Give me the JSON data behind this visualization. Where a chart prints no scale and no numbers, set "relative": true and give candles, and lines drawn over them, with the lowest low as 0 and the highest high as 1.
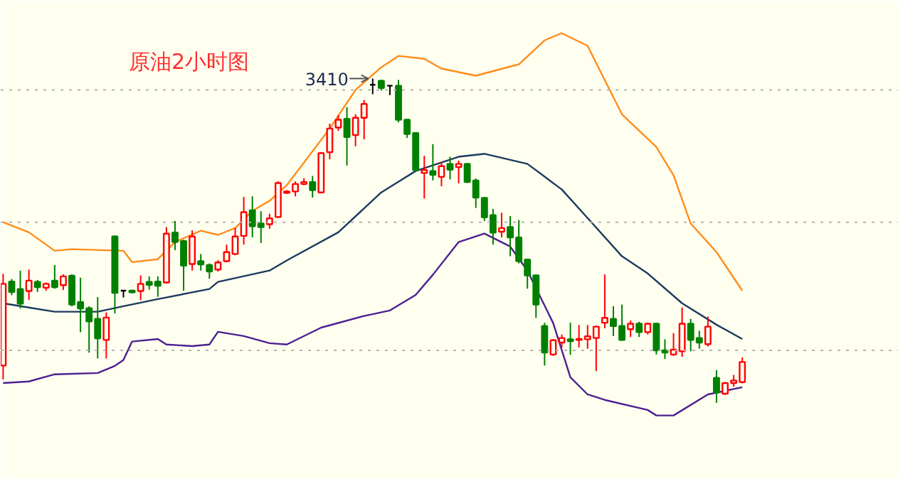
{
  "chart_data": {
    "type": "candlestick",
    "title": "原油2小时图",
    "relative": true,
    "categories": [
      null,
      null,
      null,
      null,
      null,
      null,
      null,
      null,
      null,
      null,
      null,
      null,
      null,
      null,
      null,
      null,
      null,
      null,
      null,
      null,
      null,
      null,
      null,
      null,
      null,
      null,
      null,
      null,
      null,
      null,
      null,
      null,
      null,
      null,
      null,
      null,
      null,
      null,
      null,
      null,
      null,
      null,
      null,
      null,
      null,
      null,
      null,
      null,
      null,
      null,
      null,
      null,
      null,
      null,
      null,
      null,
      null,
      null,
      null,
      null,
      null,
      null,
      null,
      null,
      null,
      null,
      null,
      null,
      null,
      null,
      null,
      null,
      null,
      null,
      null,
      null,
      null,
      null,
      null,
      null,
      null,
      null,
      null,
      null,
      null,
      null,
      null
    ],
    "ohlc": [
      [
        0.115,
        0.398,
        0.072,
        0.367
      ],
      [
        0.374,
        0.382,
        0.332,
        0.342
      ],
      [
        0.351,
        0.408,
        0.291,
        0.306
      ],
      [
        0.345,
        0.411,
        0.317,
        0.377
      ],
      [
        0.373,
        0.379,
        0.342,
        0.357
      ],
      [
        0.355,
        0.371,
        0.346,
        0.367
      ],
      [
        0.377,
        0.425,
        0.352,
        0.357
      ],
      [
        0.363,
        0.396,
        0.348,
        0.39
      ],
      [
        0.392,
        0.396,
        0.298,
        0.303
      ],
      [
        0.311,
        0.386,
        0.218,
        0.291
      ],
      [
        0.292,
        0.298,
        0.155,
        0.251
      ],
      [
        0.259,
        0.326,
        0.137,
        0.199
      ],
      [
        0.194,
        0.279,
        0.137,
        0.263
      ],
      [
        0.513,
        0.516,
        0.276,
        0.339
      ],
      [
        0.346,
        0.346,
        0.325,
        0.346
      ],
      [
        0.346,
        0.349,
        0.338,
        0.341
      ],
      [
        0.345,
        0.393,
        0.317,
        0.367
      ],
      [
        0.373,
        0.39,
        0.349,
        0.364
      ],
      [
        0.374,
        0.39,
        0.327,
        0.361
      ],
      [
        0.371,
        0.542,
        0.368,
        0.522
      ],
      [
        0.525,
        0.561,
        0.471,
        0.496
      ],
      [
        0.499,
        0.503,
        0.346,
        0.423
      ],
      [
        0.428,
        0.532,
        0.408,
        0.513
      ],
      [
        0.437,
        0.459,
        0.408,
        0.427
      ],
      [
        0.425,
        0.43,
        0.383,
        0.405
      ],
      [
        0.411,
        0.44,
        0.405,
        0.433
      ],
      [
        0.437,
        0.488,
        0.434,
        0.465
      ],
      [
        0.459,
        0.539,
        0.455,
        0.513
      ],
      [
        0.515,
        0.635,
        0.488,
        0.588
      ],
      [
        0.594,
        0.637,
        0.51,
        0.545
      ],
      [
        0.553,
        0.591,
        0.493,
        0.542
      ],
      [
        0.551,
        0.583,
        0.537,
        0.569
      ],
      [
        0.573,
        0.683,
        0.57,
        0.678
      ],
      [
        0.648,
        0.656,
        0.645,
        0.652
      ],
      [
        0.652,
        0.683,
        0.637,
        0.675
      ],
      [
        0.675,
        0.693,
        0.671,
        0.681
      ],
      [
        0.681,
        0.7,
        0.633,
        0.656
      ],
      [
        0.649,
        0.773,
        0.646,
        0.77
      ],
      [
        0.773,
        0.861,
        0.751,
        0.846
      ],
      [
        0.849,
        0.887,
        0.839,
        0.873
      ],
      [
        0.876,
        0.912,
        0.732,
        0.82
      ],
      [
        0.826,
        0.89,
        0.791,
        0.879
      ],
      [
        0.879,
        0.934,
        0.813,
        0.922
      ],
      [
        0.981,
        1.0,
        0.952,
        0.981
      ],
      [
        0.993,
        0.996,
        0.963,
        0.971
      ],
      [
        0.978,
        0.978,
        0.949,
        0.978
      ],
      [
        0.978,
        0.996,
        0.865,
        0.873
      ],
      [
        0.873,
        0.876,
        0.817,
        0.829
      ],
      [
        0.832,
        0.835,
        0.715,
        0.718
      ],
      [
        0.709,
        0.762,
        0.63,
        0.718
      ],
      [
        0.715,
        0.798,
        0.686,
        0.703
      ],
      [
        0.697,
        0.744,
        0.668,
        0.73
      ],
      [
        0.737,
        0.759,
        0.689,
        0.719
      ],
      [
        0.727,
        0.747,
        0.677,
        0.737
      ],
      [
        0.737,
        0.74,
        0.678,
        0.681
      ],
      [
        0.686,
        0.692,
        0.601,
        0.633
      ],
      [
        0.632,
        0.635,
        0.561,
        0.572
      ],
      [
        0.579,
        0.598,
        0.488,
        0.525
      ],
      [
        0.528,
        0.586,
        0.51,
        0.539
      ],
      [
        0.542,
        0.576,
        0.452,
        0.51
      ],
      [
        0.51,
        0.564,
        0.43,
        0.437
      ],
      [
        0.442,
        0.444,
        0.352,
        0.393
      ],
      [
        0.393,
        0.396,
        0.262,
        0.303
      ],
      [
        0.237,
        0.247,
        0.115,
        0.155
      ],
      [
        0.149,
        0.196,
        0.145,
        0.193
      ],
      [
        0.186,
        0.211,
        0.171,
        0.2
      ],
      [
        0.196,
        0.247,
        0.148,
        0.19
      ],
      [
        0.194,
        0.24,
        0.171,
        0.197
      ],
      [
        0.196,
        0.24,
        0.167,
        0.205
      ],
      [
        0.2,
        0.238,
        0.098,
        0.235
      ],
      [
        0.247,
        0.396,
        0.23,
        0.262
      ],
      [
        0.259,
        0.298,
        0.206,
        0.237
      ],
      [
        0.237,
        0.303,
        0.192,
        0.194
      ],
      [
        0.227,
        0.254,
        0.203,
        0.244
      ],
      [
        0.244,
        0.25,
        0.203,
        0.218
      ],
      [
        0.218,
        0.247,
        0.211,
        0.244
      ],
      [
        0.244,
        0.247,
        0.149,
        0.162
      ],
      [
        0.162,
        0.196,
        0.135,
        0.155
      ],
      [
        0.149,
        0.215,
        0.145,
        0.164
      ],
      [
        0.159,
        0.294,
        0.142,
        0.244
      ],
      [
        0.244,
        0.259,
        0.159,
        0.194
      ],
      [
        0.2,
        0.222,
        0.167,
        0.186
      ],
      [
        0.181,
        0.266,
        0.174,
        0.235
      ],
      [
        0.077,
        0.101,
        0.0,
        0.032
      ],
      [
        0.028,
        0.064,
        0.025,
        0.061
      ],
      [
        0.061,
        0.086,
        0.05,
        0.069
      ],
      [
        0.064,
        0.14,
        0.06,
        0.126
      ]
    ],
    "colors": [
      "#ff0000",
      "#008000",
      "#008000",
      "#ff0000",
      "#008000",
      "#ff0000",
      "#008000",
      "#ff0000",
      "#008000",
      "#008000",
      "#008000",
      "#008000",
      "#ff0000",
      "#008000",
      "#000000",
      "#008000",
      "#ff0000",
      "#008000",
      "#008000",
      "#ff0000",
      "#008000",
      "#008000",
      "#ff0000",
      "#008000",
      "#008000",
      "#ff0000",
      "#ff0000",
      "#ff0000",
      "#ff0000",
      "#008000",
      "#008000",
      "#ff0000",
      "#ff0000",
      "#ff0000",
      "#ff0000",
      "#ff0000",
      "#008000",
      "#ff0000",
      "#ff0000",
      "#ff0000",
      "#008000",
      "#ff0000",
      "#ff0000",
      "#000000",
      "#008000",
      "#000000",
      "#008000",
      "#008000",
      "#008000",
      "#ff0000",
      "#008000",
      "#ff0000",
      "#008000",
      "#ff0000",
      "#008000",
      "#008000",
      "#008000",
      "#008000",
      "#ff0000",
      "#008000",
      "#008000",
      "#008000",
      "#008000",
      "#008000",
      "#ff0000",
      "#ff0000",
      "#008000",
      "#ff0000",
      "#ff0000",
      "#ff0000",
      "#ff0000",
      "#008000",
      "#008000",
      "#ff0000",
      "#008000",
      "#ff0000",
      "#008000",
      "#008000",
      "#ff0000",
      "#ff0000",
      "#008000",
      "#008000",
      "#ff0000",
      "#008000",
      "#ff0000",
      "#ff0000",
      "#ff0000"
    ],
    "series": [
      {
        "type": "line",
        "color": "#ff8c1a",
        "values": [
          0.557,
          null,
          null,
          0.526,
          null,
          null,
          0.469,
          null,
          0.474,
          null,
          null,
          null,
          null,
          null,
          0.469,
          0.434,
          null,
          null,
          0.443,
          null,
          0.496,
          null,
          null,
          0.531,
          null,
          0.518,
          null,
          0.539,
          null,
          0.592,
          null,
          0.623,
          null,
          0.671,
          null,
          null,
          null,
          null,
          0.846,
          null,
          null,
          0.965,
          null,
          null,
          1.035,
          null,
          1.07,
          null,
          null,
          1.061,
          null,
          1.031,
          null,
          null,
          null,
          1.009,
          null,
          null,
          null,
          null,
          1.044,
          null,
          null,
          1.118,
          null,
          1.14,
          null,
          null,
          1.101,
          null,
          null,
          null,
          0.89,
          null,
          null,
          null,
          0.789,
          null,
          0.702,
          null,
          0.553,
          null,
          null,
          0.465,
          null,
          null,
          0.346
        ]
      },
      {
        "type": "line",
        "color": "#1c3a5e",
        "values": [
          0.307,
          null,
          null,
          0.294,
          null,
          null,
          0.281,
          null,
          null,
          null,
          null,
          0.281,
          null,
          null,
          0.298,
          null,
          null,
          null,
          0.32,
          null,
          null,
          null,
          null,
          null,
          0.351,
          0.373,
          null,
          null,
          null,
          null,
          null,
          0.408,
          null,
          0.439,
          null,
          null,
          null,
          null,
          null,
          0.526,
          null,
          null,
          null,
          null,
          0.649,
          null,
          null,
          null,
          0.715,
          null,
          null,
          null,
          null,
          0.759,
          null,
          null,
          0.768,
          null,
          null,
          null,
          null,
          0.737,
          null,
          null,
          null,
          0.658,
          null,
          null,
          0.57,
          null,
          null,
          null,
          0.452,
          null,
          null,
          0.399,
          null,
          null,
          null,
          0.307,
          null,
          null,
          null,
          0.241,
          null,
          null,
          0.197
        ]
      },
      {
        "type": "line",
        "color": "#4b2090",
        "values": [
          0.061,
          null,
          null,
          0.066,
          null,
          null,
          0.088,
          null,
          null,
          null,
          null,
          0.092,
          null,
          0.114,
          0.132,
          0.189,
          null,
          null,
          0.197,
          0.18,
          null,
          null,
          0.175,
          null,
          0.18,
          0.219,
          null,
          null,
          0.206,
          null,
          null,
          0.184,
          null,
          0.18,
          null,
          null,
          null,
          0.232,
          null,
          null,
          null,
          null,
          0.268,
          null,
          null,
          0.285,
          null,
          null,
          0.333,
          null,
          0.395,
          null,
          null,
          0.496,
          null,
          null,
          0.522,
          null,
          null,
          0.482,
          null,
          0.408,
          null,
          null,
          0.246,
          null,
          0.079,
          null,
          0.026,
          null,
          0.009,
          null,
          null,
          null,
          null,
          -0.022,
          -0.039,
          null,
          -0.039,
          null,
          null,
          null,
          0.026,
          null,
          null,
          null,
          0.048
        ]
      }
    ],
    "annotations": [
      "3410"
    ],
    "ref_lines": [
      {
        "axis": "y",
        "value": 0.965,
        "color": "#b4b4b4",
        "line_style": "dotted"
      },
      {
        "axis": "y",
        "value": 0.557,
        "color": "#b4b4b4",
        "line_style": "dotted"
      },
      {
        "axis": "y",
        "value": 0.162,
        "color": "#b4b4b4",
        "line_style": "dotted"
      }
    ]
  }
}
